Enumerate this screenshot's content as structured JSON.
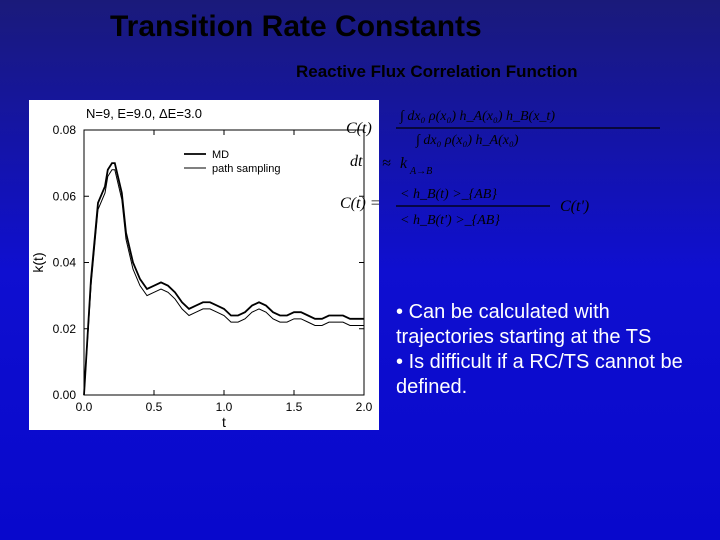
{
  "title": "Transition Rate Constants",
  "subtitle": "Reactive Flux Correlation Function",
  "chart": {
    "type": "line",
    "background_color": "#ffffff",
    "annotation": "N=9, E=9.0, ΔE=3.0",
    "annotation_fontsize": 13,
    "legend": {
      "items": [
        {
          "label": "MD",
          "style": "solid"
        },
        {
          "label": "path sampling",
          "style": "solid_thin"
        }
      ],
      "fontsize": 11
    },
    "xlabel": "t",
    "ylabel": "k(t)",
    "label_fontsize": 14,
    "xlim": [
      0.0,
      2.0
    ],
    "ylim": [
      0.0,
      0.08
    ],
    "xticks": [
      0.0,
      0.5,
      1.0,
      1.5,
      2.0
    ],
    "yticks": [
      0.0,
      0.02,
      0.04,
      0.06,
      0.08
    ],
    "tick_fontsize": 12,
    "line_color": "#000000",
    "line_width_md": 1.8,
    "line_width_ps": 1.0,
    "series": {
      "md": [
        [
          0.0,
          0.0
        ],
        [
          0.05,
          0.035
        ],
        [
          0.1,
          0.058
        ],
        [
          0.15,
          0.063
        ],
        [
          0.17,
          0.068
        ],
        [
          0.2,
          0.07
        ],
        [
          0.22,
          0.07
        ],
        [
          0.27,
          0.061
        ],
        [
          0.3,
          0.049
        ],
        [
          0.35,
          0.04
        ],
        [
          0.4,
          0.035
        ],
        [
          0.45,
          0.032
        ],
        [
          0.5,
          0.033
        ],
        [
          0.55,
          0.034
        ],
        [
          0.6,
          0.033
        ],
        [
          0.65,
          0.031
        ],
        [
          0.7,
          0.028
        ],
        [
          0.75,
          0.026
        ],
        [
          0.8,
          0.027
        ],
        [
          0.85,
          0.028
        ],
        [
          0.9,
          0.028
        ],
        [
          0.95,
          0.027
        ],
        [
          1.0,
          0.026
        ],
        [
          1.05,
          0.024
        ],
        [
          1.1,
          0.024
        ],
        [
          1.15,
          0.025
        ],
        [
          1.2,
          0.027
        ],
        [
          1.25,
          0.028
        ],
        [
          1.3,
          0.027
        ],
        [
          1.35,
          0.025
        ],
        [
          1.4,
          0.024
        ],
        [
          1.45,
          0.024
        ],
        [
          1.5,
          0.025
        ],
        [
          1.55,
          0.025
        ],
        [
          1.6,
          0.024
        ],
        [
          1.65,
          0.023
        ],
        [
          1.7,
          0.023
        ],
        [
          1.75,
          0.024
        ],
        [
          1.8,
          0.024
        ],
        [
          1.85,
          0.024
        ],
        [
          1.9,
          0.023
        ],
        [
          1.95,
          0.023
        ],
        [
          2.0,
          0.023
        ]
      ],
      "ps": [
        [
          0.0,
          0.0
        ],
        [
          0.05,
          0.033
        ],
        [
          0.1,
          0.056
        ],
        [
          0.15,
          0.061
        ],
        [
          0.17,
          0.066
        ],
        [
          0.2,
          0.068
        ],
        [
          0.22,
          0.068
        ],
        [
          0.27,
          0.059
        ],
        [
          0.3,
          0.047
        ],
        [
          0.35,
          0.038
        ],
        [
          0.4,
          0.033
        ],
        [
          0.45,
          0.03
        ],
        [
          0.5,
          0.031
        ],
        [
          0.55,
          0.032
        ],
        [
          0.6,
          0.031
        ],
        [
          0.65,
          0.029
        ],
        [
          0.7,
          0.026
        ],
        [
          0.75,
          0.024
        ],
        [
          0.8,
          0.025
        ],
        [
          0.85,
          0.026
        ],
        [
          0.9,
          0.026
        ],
        [
          0.95,
          0.025
        ],
        [
          1.0,
          0.024
        ],
        [
          1.05,
          0.022
        ],
        [
          1.1,
          0.022
        ],
        [
          1.15,
          0.023
        ],
        [
          1.2,
          0.025
        ],
        [
          1.25,
          0.026
        ],
        [
          1.3,
          0.025
        ],
        [
          1.35,
          0.023
        ],
        [
          1.4,
          0.022
        ],
        [
          1.45,
          0.022
        ],
        [
          1.5,
          0.023
        ],
        [
          1.55,
          0.023
        ],
        [
          1.6,
          0.022
        ],
        [
          1.65,
          0.021
        ],
        [
          1.7,
          0.021
        ],
        [
          1.75,
          0.022
        ],
        [
          1.8,
          0.022
        ],
        [
          1.85,
          0.022
        ],
        [
          1.9,
          0.021
        ],
        [
          1.95,
          0.021
        ],
        [
          2.0,
          0.021
        ]
      ]
    }
  },
  "equations": {
    "left_frag": "C(t)",
    "middle_frag": "dt",
    "ctbottom": "C(t) = ",
    "rhs_top_num": "∫ dx₀ ρ(x₀) h_A(x₀) h_B(x_t)",
    "rhs_top_den": "∫ dx₀ ρ(x₀) h_A(x₀)",
    "k_arrow": "k_{A→B}",
    "frac2_top": "< h_B(t) >_{AB}",
    "frac2_bot": "< h_B(t') >_{AB}",
    "ctprime": "C(t')"
  },
  "bullets": {
    "b1_prefix": "• ",
    "b1_text": "Can be calculated with trajectories starting at the TS",
    "b2_prefix": "• ",
    "b2_text": "Is difficult if a RC/TS cannot be defined."
  }
}
